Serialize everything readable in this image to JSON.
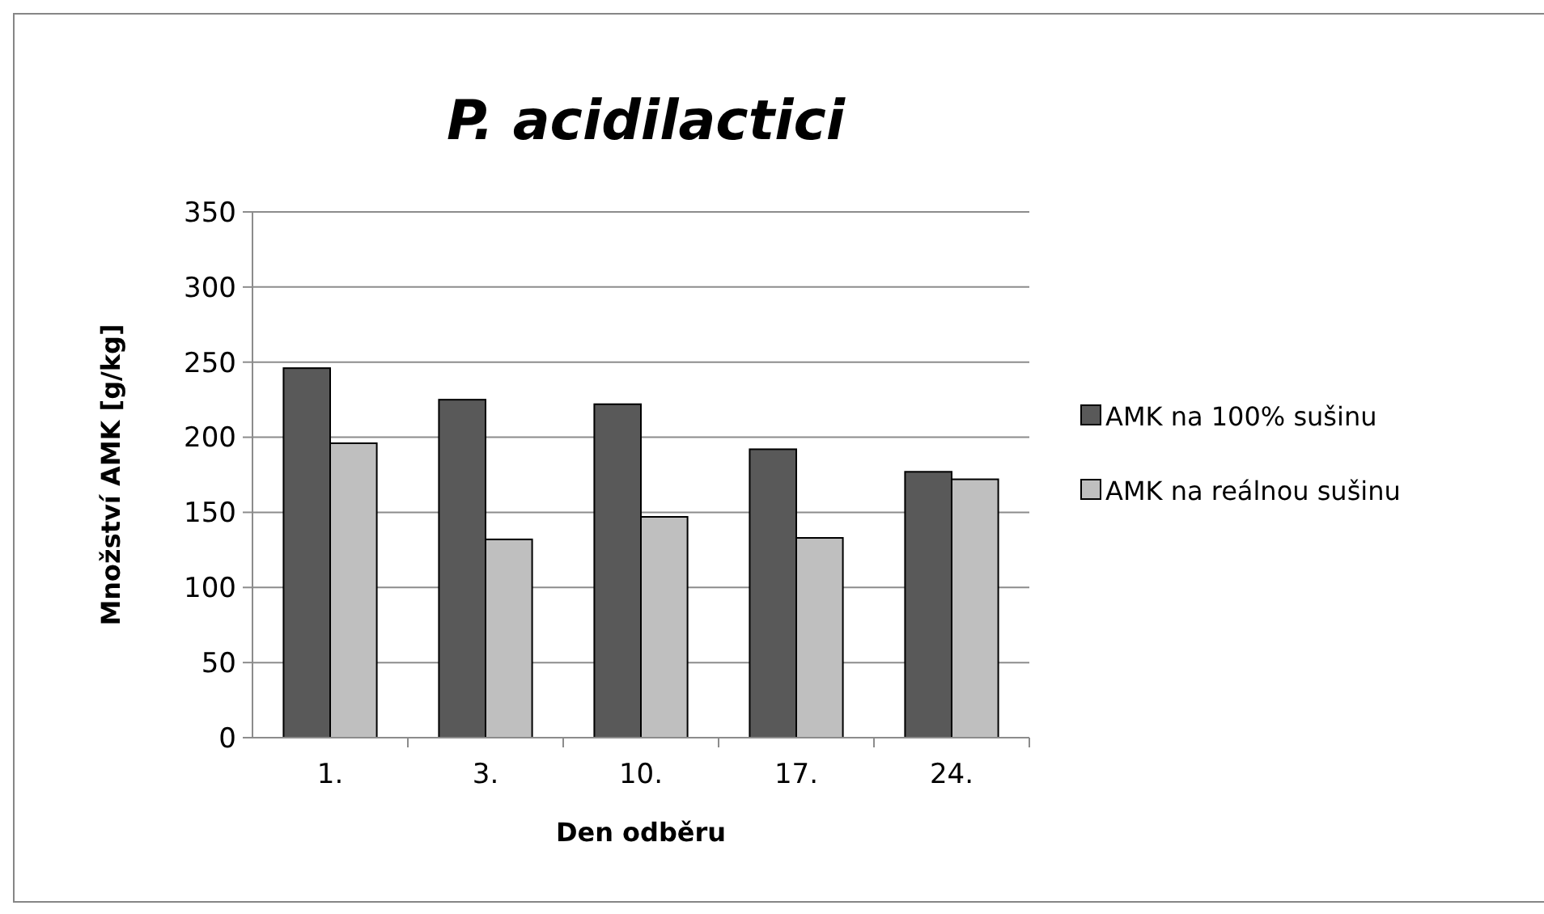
{
  "chart_data": {
    "type": "bar",
    "title": "P. acidilactici",
    "xlabel": "Den odběru",
    "ylabel": "Množství AMK [g/kg]",
    "categories": [
      "1.",
      "3.",
      "10.",
      "17.",
      "24."
    ],
    "series": [
      {
        "name": "AMK na 100% sušinu",
        "color": "#595959",
        "values": [
          246,
          225,
          222,
          192,
          177
        ]
      },
      {
        "name": "AMK na reálnou sušinu",
        "color": "#bfbfbf",
        "values": [
          196,
          132,
          147,
          133,
          172
        ]
      }
    ],
    "ylim": [
      0,
      350
    ],
    "yticks": [
      0,
      50,
      100,
      150,
      200,
      250,
      300,
      350
    ],
    "grid": "y",
    "legend": "right"
  }
}
